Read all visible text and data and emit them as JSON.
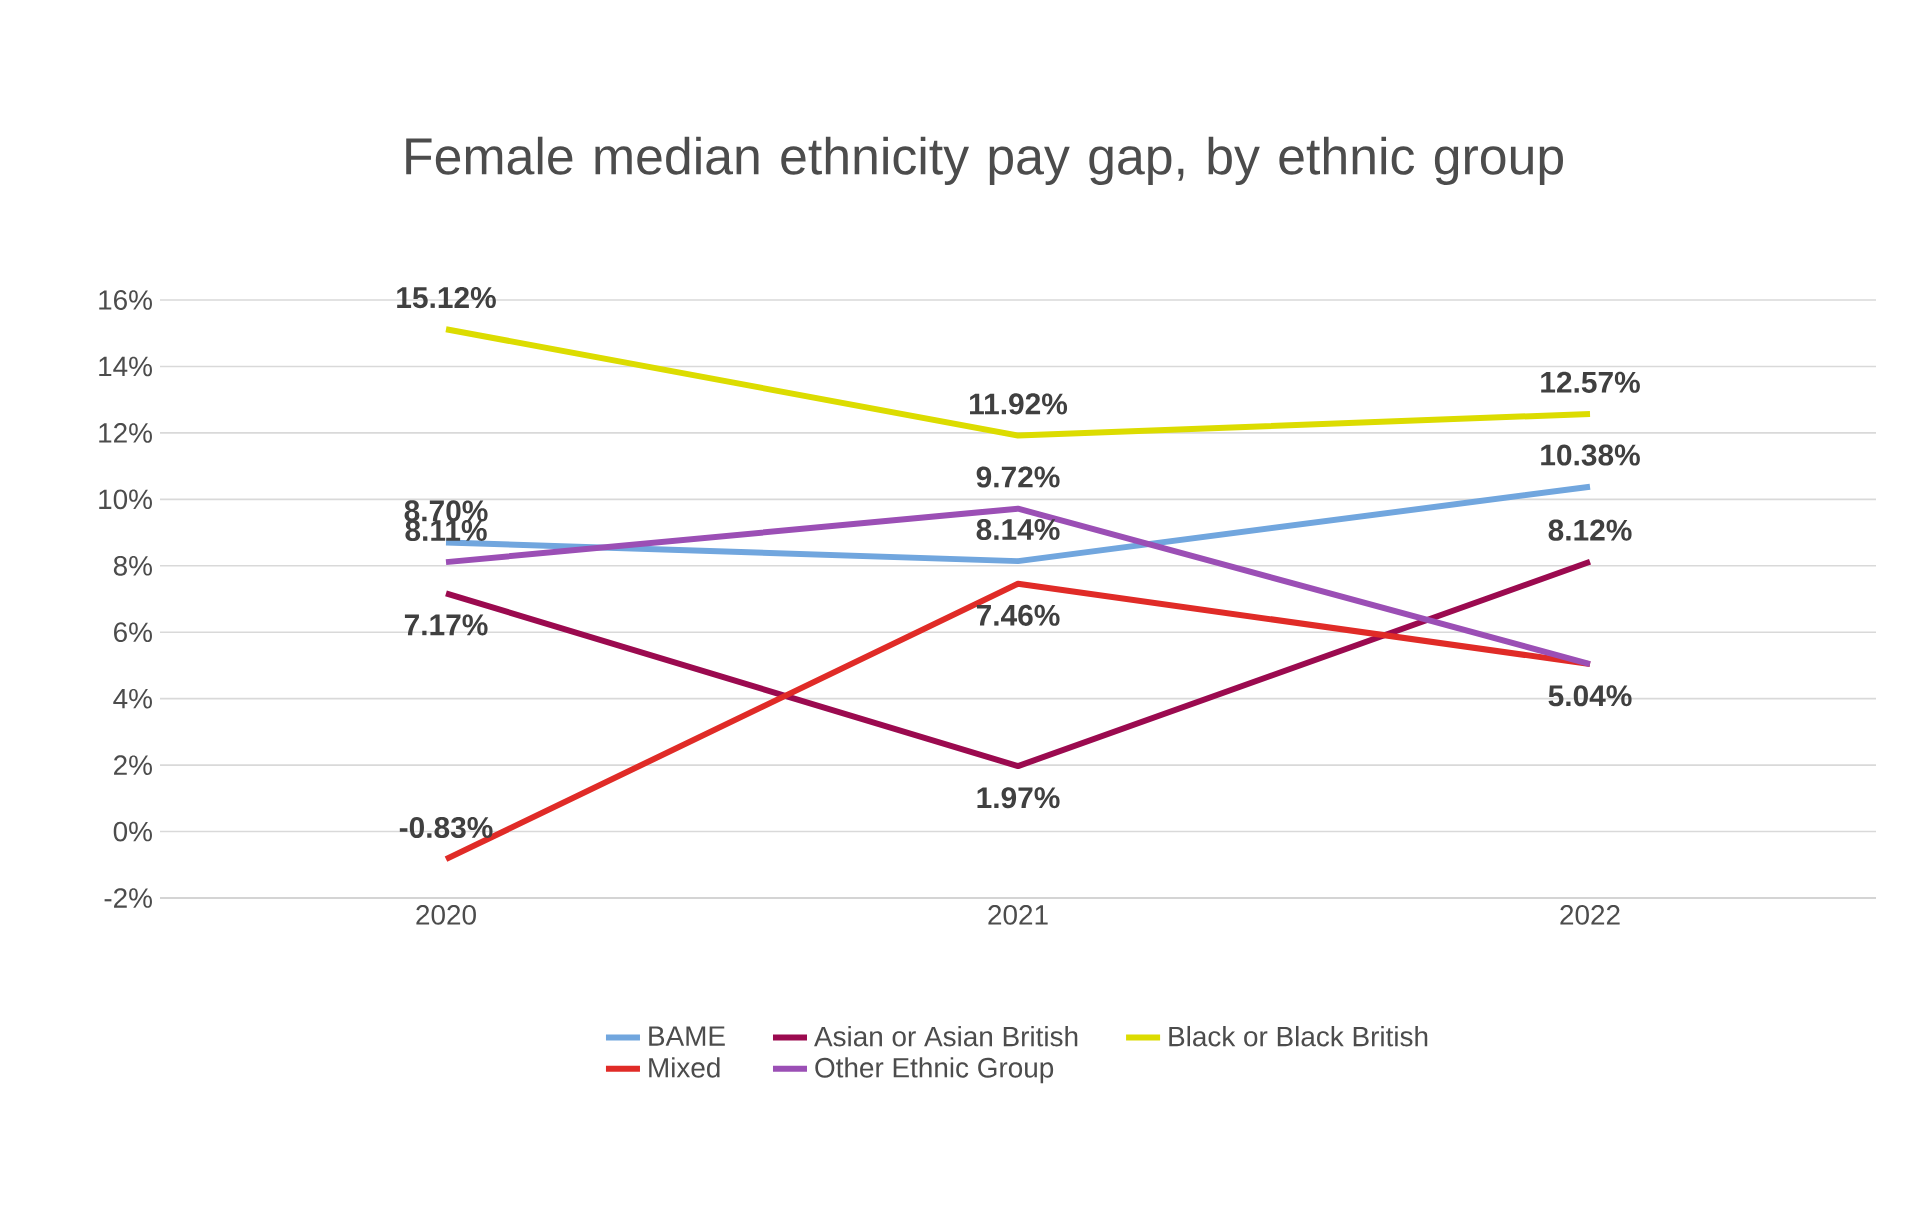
{
  "chart_data": {
    "type": "line",
    "title": "Female median ethnicity pay gap, by ethnic group",
    "categories": [
      "2020",
      "2021",
      "2022"
    ],
    "series": [
      {
        "name": "BAME",
        "color": "#71a6de",
        "values": [
          8.7,
          8.14,
          10.38
        ],
        "value_labels": [
          "8.70%",
          "8.14%",
          "10.38%"
        ]
      },
      {
        "name": "Asian or Asian British",
        "color": "#9b0a4f",
        "values": [
          7.17,
          1.97,
          8.12
        ],
        "value_labels": [
          "7.17%",
          "1.97%",
          "8.12%"
        ]
      },
      {
        "name": "Black or Black British",
        "color": "#dcdc00",
        "values": [
          15.12,
          11.92,
          12.57
        ],
        "value_labels": [
          "15.12%",
          "11.92%",
          "12.57%"
        ]
      },
      {
        "name": "Mixed",
        "color": "#e02b27",
        "values": [
          -0.83,
          7.46,
          5.04
        ],
        "value_labels": [
          "-0.83%",
          "7.46%",
          "5.04%"
        ]
      },
      {
        "name": "Other Ethnic Group",
        "color": "#9b4fb5",
        "values": [
          8.11,
          9.72,
          5.04
        ],
        "value_labels": [
          "8.11%",
          "9.72%",
          null
        ]
      }
    ],
    "ylim": [
      -2,
      16
    ],
    "yticks": [
      {
        "value": -2,
        "label": "-2%"
      },
      {
        "value": 0,
        "label": "0%"
      },
      {
        "value": 2,
        "label": "2%"
      },
      {
        "value": 4,
        "label": "4%"
      },
      {
        "value": 6,
        "label": "6%"
      },
      {
        "value": 8,
        "label": "8%"
      },
      {
        "value": 10,
        "label": "10%"
      },
      {
        "value": 12,
        "label": "12%"
      },
      {
        "value": 14,
        "label": "14%"
      },
      {
        "value": 16,
        "label": "16%"
      }
    ],
    "grid": "y",
    "legend": "bottom",
    "marker": "none",
    "line_style": "solid"
  }
}
